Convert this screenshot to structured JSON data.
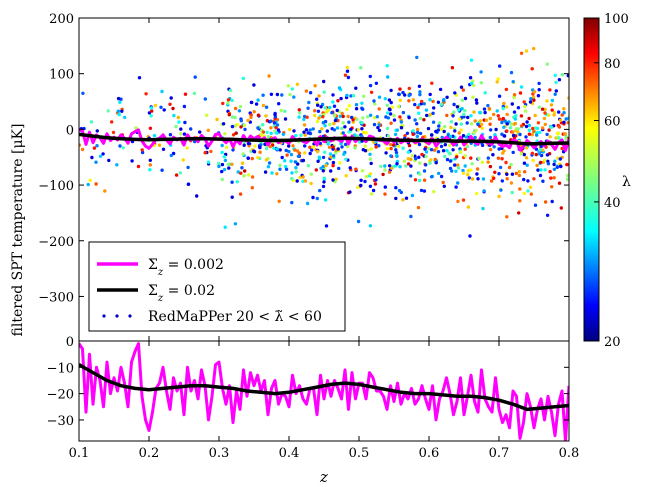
{
  "chart_data": {
    "type": "scatter",
    "ylabel": "filtered SPT temperature [μK]",
    "xlabel": "z",
    "xlim": [
      0.1,
      0.8
    ],
    "top_panel": {
      "ylim": [
        -380,
        200
      ],
      "yticks": [
        200,
        100,
        0,
        -100,
        -200,
        -300
      ],
      "ytick_labels": [
        "200",
        "100",
        "0",
        "−100",
        "−200",
        "−300"
      ]
    },
    "bottom_panel": {
      "ylim": [
        -38,
        0
      ],
      "yticks": [
        0,
        -10,
        -20,
        -30
      ],
      "ytick_labels": [
        "0",
        "−10",
        "−20",
        "−30"
      ]
    },
    "xticks": [
      0.1,
      0.2,
      0.3,
      0.4,
      0.5,
      0.6,
      0.7,
      0.8
    ],
    "xtick_labels": [
      "0.1",
      "0.2",
      "0.3",
      "0.4",
      "0.5",
      "0.6",
      "0.7",
      "0.8"
    ],
    "colorbar": {
      "label": "λ",
      "range": [
        20,
        100
      ],
      "scale": "log",
      "ticks": [
        100,
        80,
        60,
        40,
        20
      ],
      "tick_labels": [
        "100",
        "80",
        "60",
        "40",
        "20"
      ],
      "colormap": "jet"
    },
    "legend": {
      "placement": "lower-left",
      "entries": [
        {
          "label_main": "Σ",
          "label_sub": "z",
          "label_rest": " = 0.002",
          "color": "#ff00ff",
          "style": "line"
        },
        {
          "label_main": "Σ",
          "label_sub": "z",
          "label_rest": " = 0.02",
          "color": "#000000",
          "style": "line"
        },
        {
          "label_main": "RedMaPPer 20 < λ̃ < 60",
          "label_sub": "",
          "label_rest": "",
          "color": "#0000cc",
          "style": "dots"
        }
      ]
    },
    "series": [
      {
        "name": "Σz = 0.002",
        "color": "#ff00ff",
        "x": [
          0.1,
          0.105,
          0.11,
          0.115,
          0.12,
          0.125,
          0.13,
          0.135,
          0.14,
          0.145,
          0.15,
          0.155,
          0.16,
          0.165,
          0.17,
          0.175,
          0.18,
          0.185,
          0.19,
          0.195,
          0.2,
          0.205,
          0.21,
          0.215,
          0.22,
          0.225,
          0.23,
          0.235,
          0.24,
          0.245,
          0.25,
          0.255,
          0.26,
          0.265,
          0.27,
          0.275,
          0.28,
          0.285,
          0.29,
          0.295,
          0.3,
          0.305,
          0.31,
          0.315,
          0.32,
          0.325,
          0.33,
          0.335,
          0.34,
          0.345,
          0.35,
          0.355,
          0.36,
          0.365,
          0.37,
          0.375,
          0.38,
          0.385,
          0.39,
          0.395,
          0.4,
          0.405,
          0.41,
          0.415,
          0.42,
          0.425,
          0.43,
          0.435,
          0.44,
          0.445,
          0.45,
          0.455,
          0.46,
          0.465,
          0.47,
          0.475,
          0.48,
          0.485,
          0.49,
          0.495,
          0.5,
          0.505,
          0.51,
          0.515,
          0.52,
          0.525,
          0.53,
          0.535,
          0.54,
          0.545,
          0.55,
          0.555,
          0.56,
          0.565,
          0.57,
          0.575,
          0.58,
          0.585,
          0.59,
          0.595,
          0.6,
          0.605,
          0.61,
          0.615,
          0.62,
          0.625,
          0.63,
          0.635,
          0.64,
          0.645,
          0.65,
          0.655,
          0.66,
          0.665,
          0.67,
          0.675,
          0.68,
          0.685,
          0.69,
          0.695,
          0.7,
          0.705,
          0.71,
          0.715,
          0.72,
          0.725,
          0.73,
          0.735,
          0.74,
          0.745,
          0.75,
          0.755,
          0.76,
          0.765,
          0.77,
          0.775,
          0.78,
          0.785,
          0.79,
          0.795,
          0.8
        ],
        "y": [
          -1,
          -3,
          -27,
          -5,
          -24,
          -10,
          -15,
          -25,
          -8,
          -20,
          -14,
          -19,
          -10,
          -16,
          -25,
          -8,
          -4,
          -1,
          -21,
          -30,
          -34,
          -27,
          -18,
          -16,
          -10,
          -19,
          -26,
          -14,
          -19,
          -16,
          -28,
          -10,
          -19,
          -15,
          -22,
          -11,
          -17,
          -30,
          -21,
          -9,
          -8,
          -18,
          -24,
          -17,
          -31,
          -19,
          -26,
          -11,
          -21,
          -12,
          -17,
          -13,
          -19,
          -15,
          -28,
          -18,
          -15,
          -24,
          -20,
          -21,
          -25,
          -13,
          -20,
          -17,
          -22,
          -24,
          -18,
          -18,
          -28,
          -13,
          -22,
          -15,
          -21,
          -15,
          -18,
          -22,
          -11,
          -26,
          -12,
          -22,
          -16,
          -16,
          -22,
          -12,
          -14,
          -19,
          -19,
          -21,
          -26,
          -17,
          -23,
          -16,
          -24,
          -20,
          -22,
          -18,
          -24,
          -22,
          -17,
          -22,
          -26,
          -17,
          -30,
          -22,
          -19,
          -14,
          -20,
          -28,
          -23,
          -14,
          -28,
          -21,
          -13,
          -23,
          -27,
          -11,
          -22,
          -25,
          -27,
          -14,
          -26,
          -31,
          -28,
          -33,
          -19,
          -21,
          -37,
          -31,
          -20,
          -25,
          -33,
          -26,
          -22,
          -30,
          -21,
          -27,
          -36,
          -24,
          -19,
          -38,
          -17
        ],
        "panel": "both"
      },
      {
        "name": "Σz = 0.02",
        "color": "#000000",
        "x": [
          0.1,
          0.12,
          0.14,
          0.16,
          0.18,
          0.2,
          0.22,
          0.24,
          0.26,
          0.28,
          0.3,
          0.32,
          0.34,
          0.36,
          0.38,
          0.4,
          0.42,
          0.44,
          0.46,
          0.48,
          0.5,
          0.52,
          0.54,
          0.56,
          0.58,
          0.6,
          0.62,
          0.64,
          0.66,
          0.68,
          0.7,
          0.72,
          0.74,
          0.76,
          0.78,
          0.8
        ],
        "y": [
          -9,
          -12,
          -15,
          -17,
          -18,
          -18.5,
          -18,
          -17.5,
          -17,
          -17,
          -17.5,
          -18,
          -19,
          -19.5,
          -20,
          -19.5,
          -18.5,
          -17.5,
          -16.5,
          -16,
          -16.5,
          -17.5,
          -18.5,
          -19.5,
          -20,
          -20,
          -20.5,
          -21,
          -21,
          -21.5,
          -22.5,
          -24,
          -26,
          -25.5,
          -25,
          -24.5
        ],
        "panel": "both"
      }
    ]
  }
}
